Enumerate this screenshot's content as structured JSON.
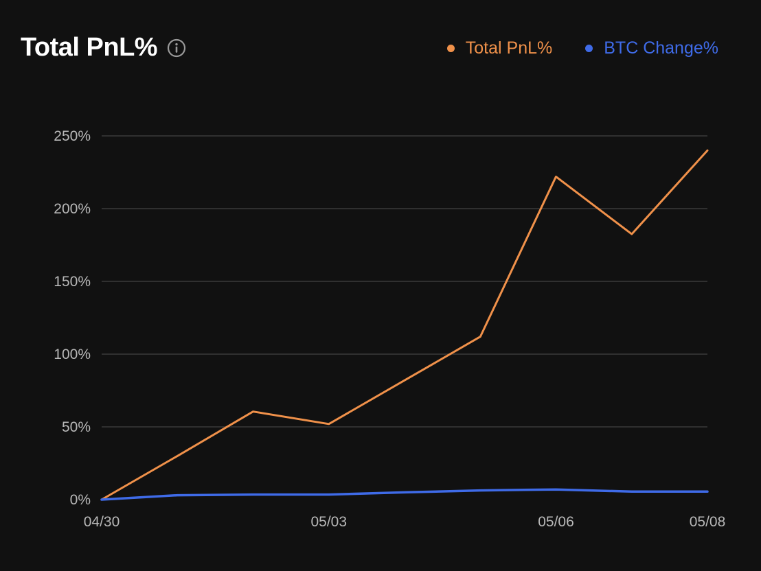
{
  "header": {
    "title": "Total PnL%"
  },
  "colors": {
    "background": "#111111",
    "grid": "#3a3a3a",
    "total_pnl": "#f0914a",
    "btc_change": "#3f6be8",
    "info_icon": "#9a9a9a"
  },
  "legend": {
    "items": [
      {
        "label": "Total PnL%",
        "color": "#f0914a"
      },
      {
        "label": "BTC Change%",
        "color": "#3f6be8"
      }
    ],
    "placement": "top-right"
  },
  "chart_data": {
    "type": "line",
    "title": "Total PnL%",
    "x_tick_labels": [
      "04/30",
      "05/03",
      "05/06",
      "05/08"
    ],
    "x_ticks": [
      "2024-04-30",
      "2024-05-03",
      "2024-05-06",
      "2024-05-08"
    ],
    "y_tick_labels": [
      "0%",
      "50%",
      "100%",
      "150%",
      "200%",
      "250%"
    ],
    "y_ticks": [
      0,
      50,
      100,
      150,
      200,
      250
    ],
    "ylim": [
      0,
      250
    ],
    "xlim": [
      "2024-04-30",
      "2024-05-08"
    ],
    "grid": "horizontal",
    "x": [
      "2024-04-30",
      "2024-05-01",
      "2024-05-02",
      "2024-05-03",
      "2024-05-04",
      "2024-05-05",
      "2024-05-06",
      "2024-05-07",
      "2024-05-08"
    ],
    "series": [
      {
        "name": "Total PnL%",
        "color": "#f0914a",
        "values": [
          0,
          30,
          60.5,
          52,
          82,
          112,
          222,
          182.5,
          240
        ]
      },
      {
        "name": "BTC Change%",
        "color": "#3f6be8",
        "values": [
          0,
          3,
          3.5,
          3.5,
          5,
          6.3,
          7,
          5.5,
          5.5
        ]
      }
    ]
  }
}
